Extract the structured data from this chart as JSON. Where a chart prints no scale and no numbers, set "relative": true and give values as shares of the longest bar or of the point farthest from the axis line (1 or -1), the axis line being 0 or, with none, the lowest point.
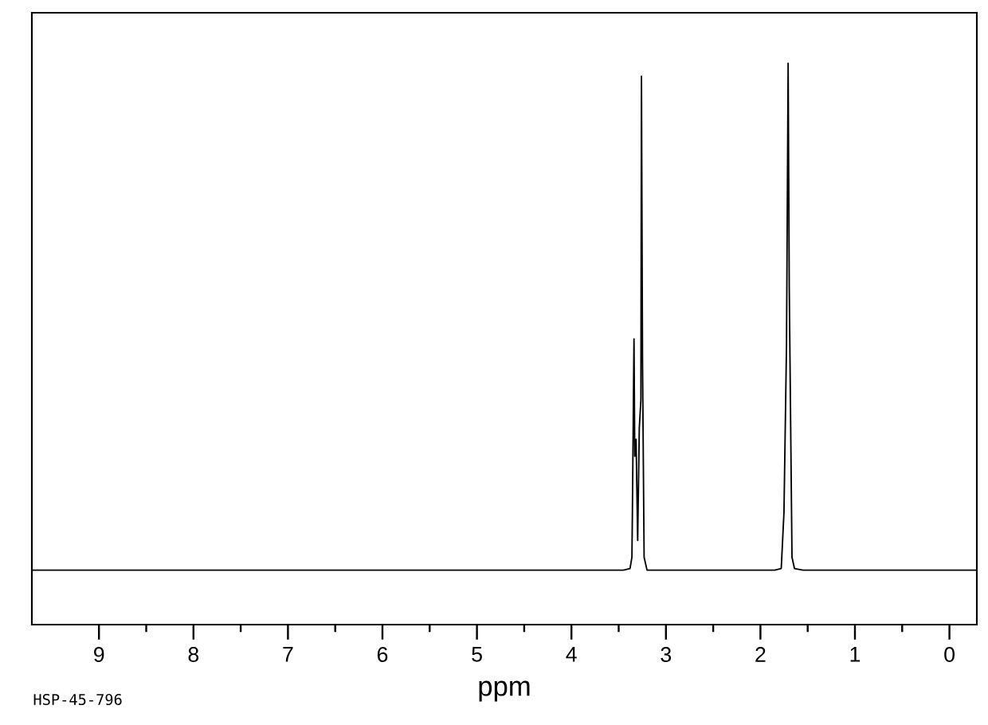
{
  "chart_data": {
    "type": "line",
    "relative": true,
    "xlabel": "ppm",
    "annotations": [
      "HSP-45-796"
    ],
    "color": "#000000",
    "xlim": [
      9.71,
      -0.29
    ],
    "xticks": [
      9,
      {
        "value": 8.5,
        "label": null
      },
      8,
      {
        "value": 7.5,
        "label": null
      },
      7,
      {
        "value": 6.5,
        "label": null
      },
      6,
      {
        "value": 5.5,
        "label": null
      },
      5,
      {
        "value": 4.5,
        "label": null
      },
      4,
      {
        "value": 3.5,
        "label": null
      },
      3,
      {
        "value": 2.5,
        "label": null
      },
      2,
      {
        "value": 1.5,
        "label": null
      },
      1,
      {
        "value": 0.5,
        "label": null
      },
      0
    ],
    "grid": false,
    "marker": "none",
    "line_style": "solid",
    "x": [
      9.71,
      5.5,
      3.45,
      3.38,
      3.36,
      3.355,
      3.338,
      3.33,
      3.316,
      3.299,
      3.282,
      3.265,
      3.259,
      3.248,
      3.231,
      3.2,
      1.85,
      1.78,
      1.751,
      1.724,
      1.707,
      1.695,
      1.666,
      1.64,
      1.55,
      -0.29
    ],
    "values": [
      0.097,
      0.097,
      0.097,
      0.1,
      0.12,
      0.2,
      0.509,
      0.3,
      0.33,
      0.15,
      0.35,
      0.4,
      0.977,
      0.47,
      0.12,
      0.097,
      0.097,
      0.1,
      0.2,
      0.5,
      1.0,
      0.6,
      0.12,
      0.1,
      0.097,
      0.097
    ]
  }
}
